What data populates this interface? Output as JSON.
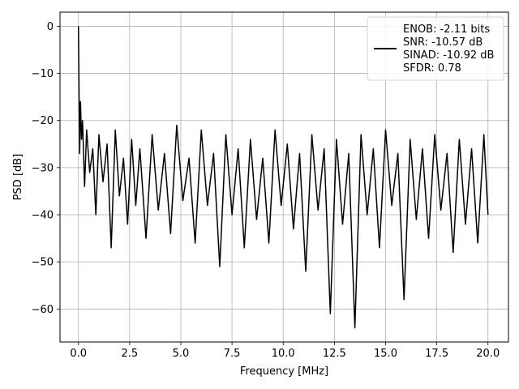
{
  "chart_data": {
    "type": "line",
    "title": "",
    "xlabel": "Frequency [MHz]",
    "ylabel": "PSD [dB]",
    "xlim": [
      -0.9,
      21.0
    ],
    "ylim": [
      -67.0,
      3.0
    ],
    "xticks": [
      0.0,
      2.5,
      5.0,
      7.5,
      10.0,
      12.5,
      15.0,
      17.5,
      20.0
    ],
    "xtick_labels": [
      "0.0",
      "2.5",
      "5.0",
      "7.5",
      "10.0",
      "12.5",
      "15.0",
      "17.5",
      "20.0"
    ],
    "yticks": [
      0,
      -10,
      -20,
      -30,
      -40,
      -50,
      -60
    ],
    "ytick_labels": [
      "0",
      "−10",
      "−20",
      "−30",
      "−40",
      "−50",
      "−60"
    ],
    "grid": true,
    "legend_position": "top-right",
    "line_color": "#000000",
    "series": [
      {
        "name": "",
        "color": "#000000",
        "x": [
          0.0,
          0.03,
          0.06,
          0.1,
          0.15,
          0.2,
          0.3,
          0.4,
          0.55,
          0.7,
          0.85,
          1.0,
          1.2,
          1.4,
          1.6,
          1.8,
          2.0,
          2.2,
          2.4,
          2.6,
          2.8,
          3.0,
          3.3,
          3.6,
          3.9,
          4.2,
          4.5,
          4.8,
          5.1,
          5.4,
          5.7,
          6.0,
          6.3,
          6.6,
          6.9,
          7.2,
          7.5,
          7.8,
          8.1,
          8.4,
          8.7,
          9.0,
          9.3,
          9.6,
          9.9,
          10.2,
          10.5,
          10.8,
          11.1,
          11.4,
          11.7,
          12.0,
          12.3,
          12.6,
          12.9,
          13.2,
          13.5,
          13.8,
          14.1,
          14.4,
          14.7,
          15.0,
          15.3,
          15.6,
          15.9,
          16.2,
          16.5,
          16.8,
          17.1,
          17.4,
          17.7,
          18.0,
          18.3,
          18.6,
          18.9,
          19.2,
          19.5,
          19.8,
          20.0
        ],
        "y": [
          0.0,
          -14.5,
          -27.0,
          -16.0,
          -24.0,
          -20.0,
          -34.0,
          -22.0,
          -31.0,
          -26.0,
          -40.0,
          -23.0,
          -33.0,
          -25.0,
          -47.0,
          -22.0,
          -36.0,
          -28.0,
          -42.0,
          -24.0,
          -38.0,
          -26.0,
          -45.0,
          -23.0,
          -39.0,
          -27.0,
          -44.0,
          -21.0,
          -37.0,
          -28.0,
          -46.0,
          -22.0,
          -38.0,
          -27.0,
          -51.0,
          -23.0,
          -40.0,
          -26.0,
          -47.0,
          -24.0,
          -41.0,
          -28.0,
          -46.0,
          -22.0,
          -38.0,
          -25.0,
          -43.0,
          -27.0,
          -52.0,
          -23.0,
          -39.0,
          -26.0,
          -61.0,
          -24.0,
          -42.0,
          -27.0,
          -64.0,
          -23.0,
          -40.0,
          -26.0,
          -47.0,
          -22.0,
          -38.0,
          -27.0,
          -58.0,
          -24.0,
          -41.0,
          -26.0,
          -45.0,
          -23.0,
          -39.0,
          -27.0,
          -48.0,
          -24.0,
          -42.0,
          -26.0,
          -46.0,
          -23.0,
          -40.0
        ]
      }
    ],
    "legend": {
      "lines": [
        "ENOB: -2.11 bits",
        "SNR: -10.57 dB",
        "SINAD: -10.92 dB",
        "SFDR: 0.78"
      ]
    }
  }
}
